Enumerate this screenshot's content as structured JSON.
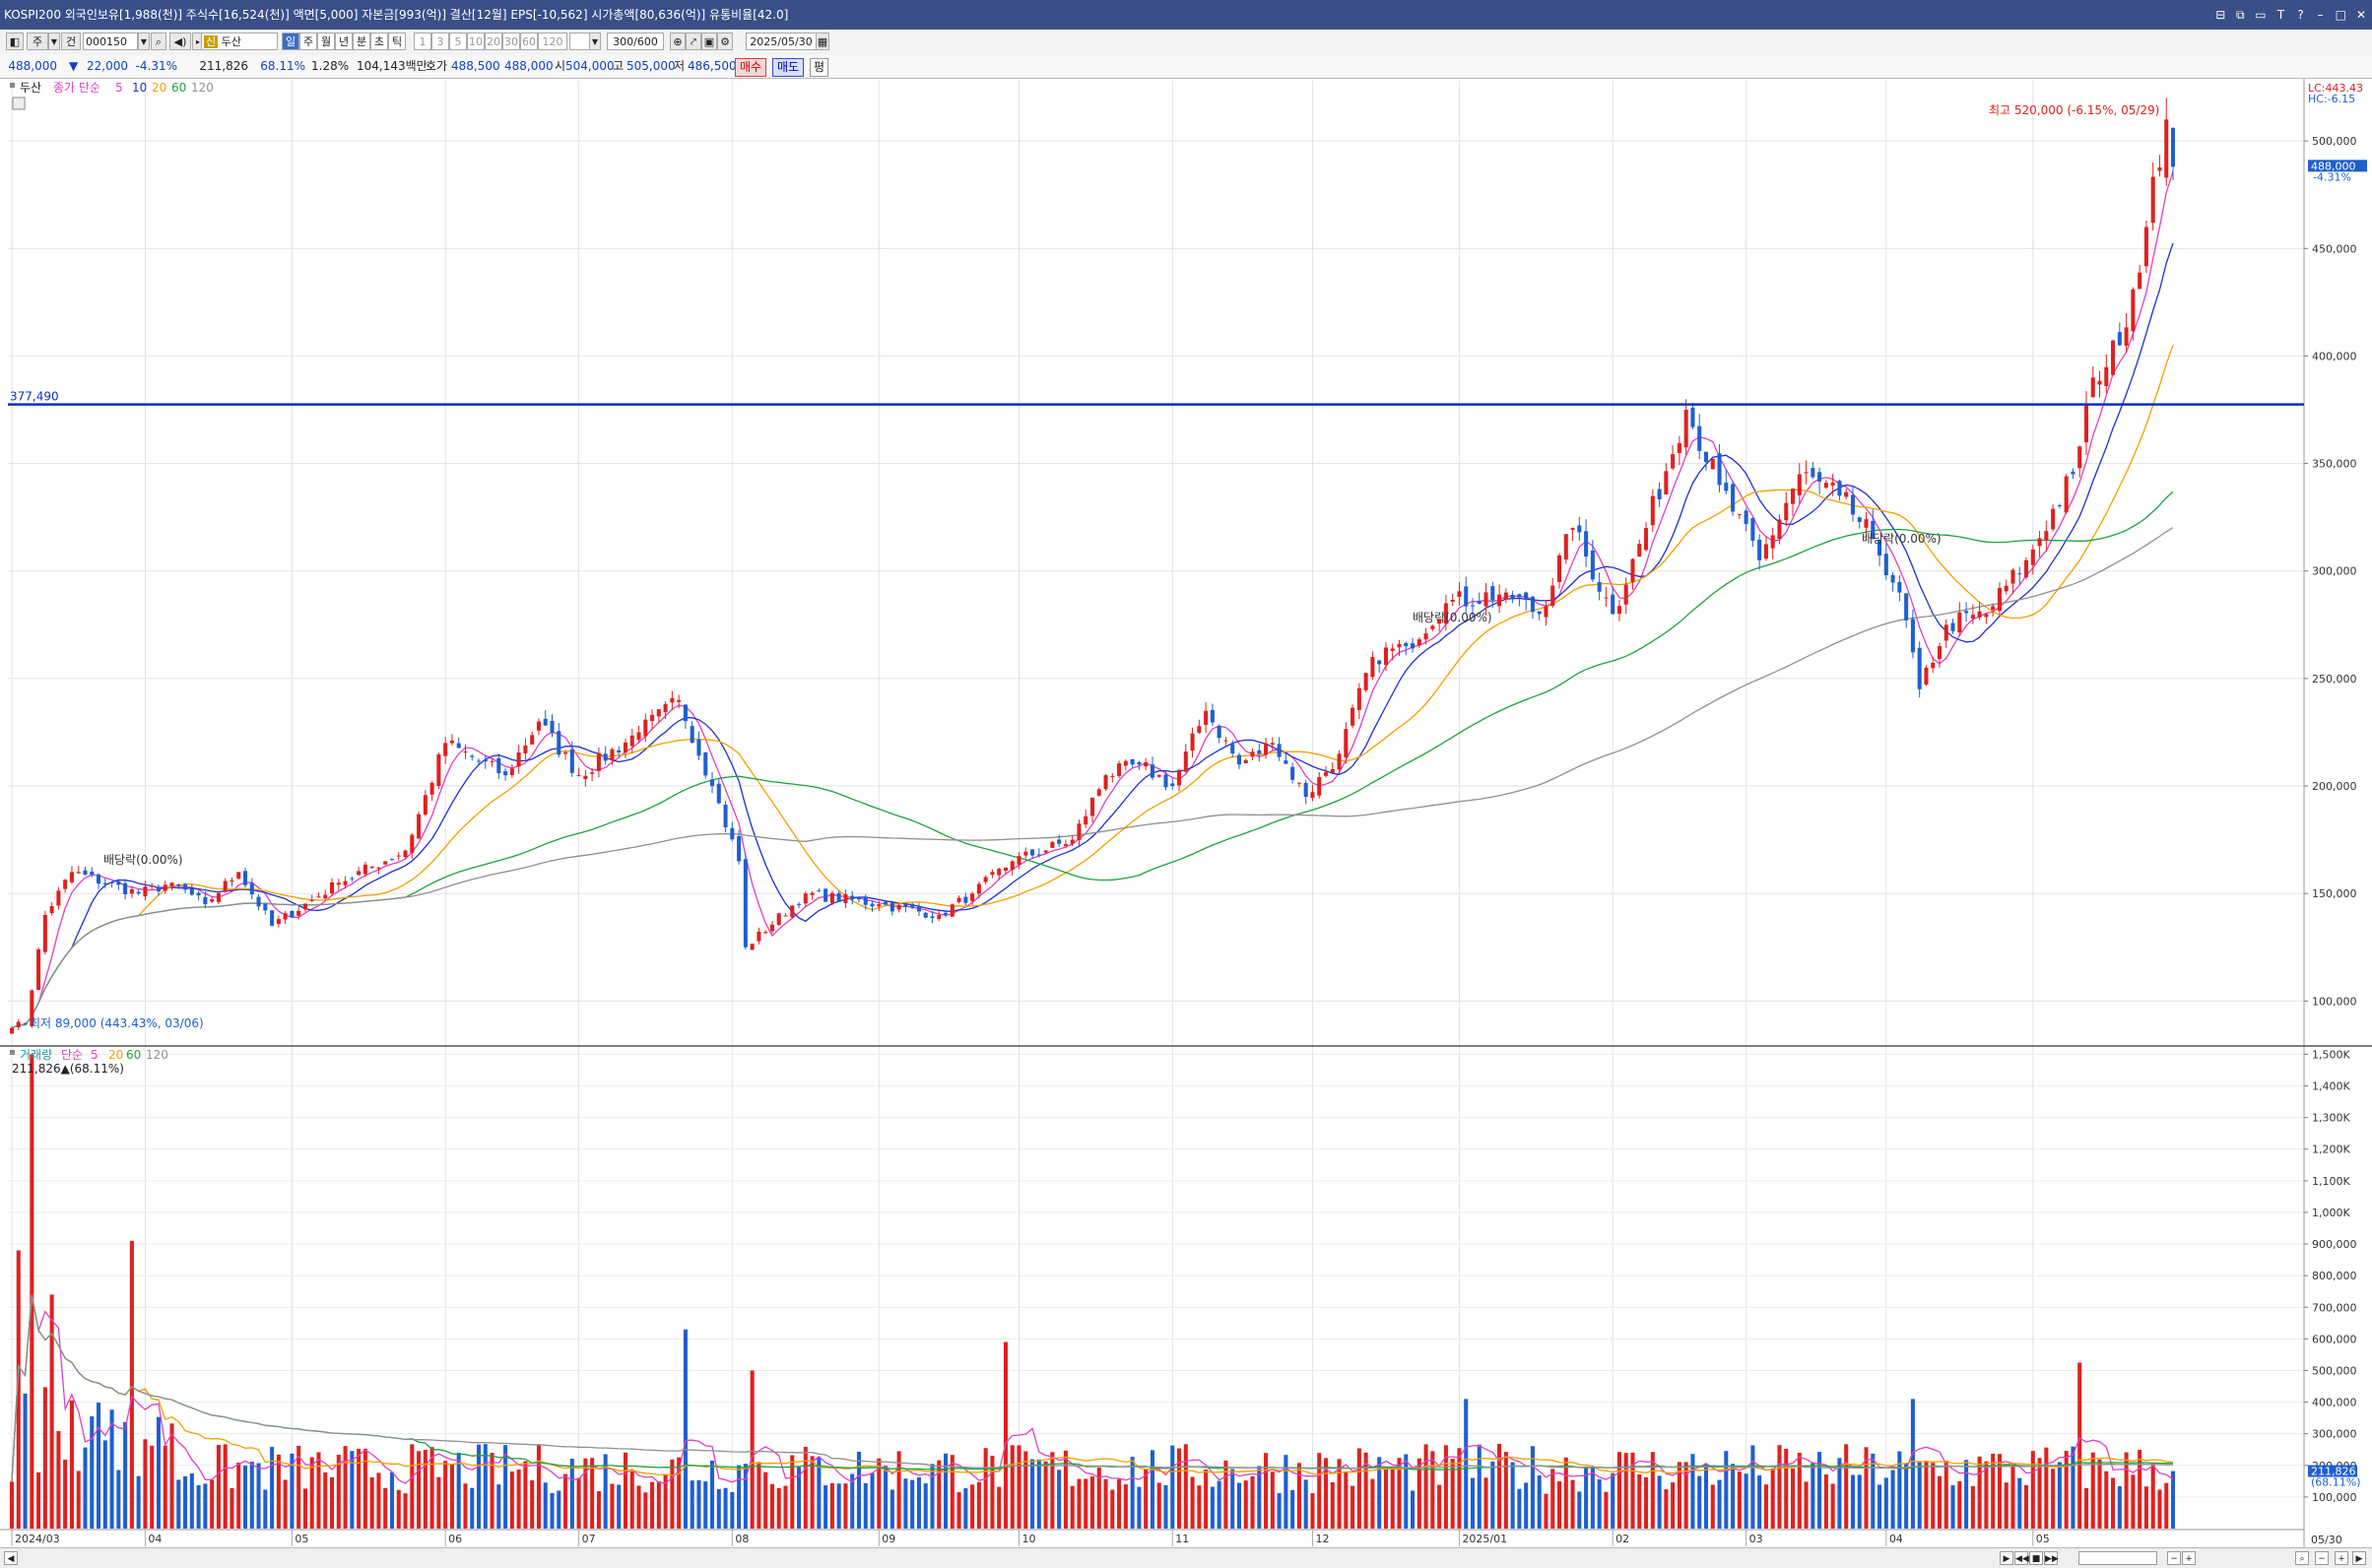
{
  "titlebar": {
    "text": "KOSPI200 외국인보유[1,988(천)] 주식수[16,524(천)] 액면[5,000] 자본금[993(억)] 결산[12월] EPS[-10,562] 시가총액[80,636(억)] 유통비율[42.0]",
    "buttons": [
      "⊟",
      "⧉",
      "▭",
      "T",
      "?",
      "–",
      "□",
      "✕"
    ]
  },
  "toolbar": {
    "period_buttons": [
      "주",
      "건"
    ],
    "stock_code": "000150",
    "stock_name_badge": "신",
    "stock_name": "두산",
    "timeframes": [
      "일",
      "주",
      "월",
      "년",
      "분",
      "초",
      "틱"
    ],
    "minute_options": [
      "1",
      "3",
      "5",
      "10",
      "20",
      "30",
      "60",
      "120"
    ],
    "count": "300/600",
    "date": "2025/05/30"
  },
  "quote": {
    "price": "488,000",
    "arrow": "▼",
    "change": "22,000",
    "change_pct": "-4.31%",
    "volume": "211,826",
    "volume_pct": "68.11%",
    "turnover": "1.28%",
    "amount": "104,143백만",
    "bid_label": "호가",
    "bid1": "488,500",
    "bid2": "488,000",
    "open_label": "시",
    "open": "504,000",
    "high_label": "고",
    "high": "505,000",
    "low_label": "저",
    "low": "486,500",
    "buy": "매수",
    "sell": "매도",
    "flat": "평"
  },
  "price_pane": {
    "stock_label": "두산",
    "ma_label": "종가 단순",
    "ma_periods": [
      "5",
      "10",
      "20",
      "60",
      "120"
    ],
    "lc": "LC:443.43",
    "hc": "HC:-6.15",
    "current_price": "488,000",
    "current_pct": "-4.31%",
    "hline_value": "377,490",
    "high_annotation": "최고 520,000 (-6.15%, 05/29)",
    "low_annotation": "최저 89,000 (443.43%, 03/06)",
    "dividend_label": "배당락(0.00%)",
    "y_ticks": [
      "500,000",
      "450,000",
      "400,000",
      "350,000",
      "300,000",
      "250,000",
      "200,000",
      "150,000",
      "100,000"
    ]
  },
  "volume_pane": {
    "label": "거래량",
    "ma_label": "단순",
    "ma_periods": [
      "5",
      "20",
      "60",
      "120"
    ],
    "current": "211,826",
    "current_pct": "(68.11%)",
    "current_display": "211,826▲(68.11%)",
    "y_ticks": [
      "1,500K",
      "1,400K",
      "1,300K",
      "1,200K",
      "1,100K",
      "1,000K",
      "900,000",
      "800,000",
      "700,000",
      "600,000",
      "500,000",
      "400,000",
      "300,000",
      "200,000",
      "100,000"
    ]
  },
  "x_labels": [
    "2024/03",
    "04",
    "05",
    "06",
    "07",
    "08",
    "09",
    "10",
    "11",
    "12",
    "2025/01",
    "02",
    "03",
    "04",
    "05"
  ],
  "last_date": "05/30",
  "colors": {
    "up": "#e02020",
    "down": "#1f5fd0",
    "ma5": "#e040c0",
    "ma10": "#2030d0",
    "ma20": "#f0a000",
    "ma60": "#20a040",
    "ma120": "#909090",
    "hline": "#1030c0"
  },
  "chart_data": {
    "type": "candlestick",
    "title": "두산",
    "x_range": [
      "2024/03/04",
      "2025/05/30"
    ],
    "ylim": [
      80000,
      528000
    ],
    "volume_ylim": [
      0,
      1520000
    ],
    "close_anchors": [
      {
        "x": "2024/03/06",
        "y": 89000
      },
      {
        "x": "2024/03/11",
        "y": 140000
      },
      {
        "x": "2024/03/15",
        "y": 160000
      },
      {
        "x": "2024/03/29",
        "y": 150000
      },
      {
        "x": "2024/04/05",
        "y": 155000
      },
      {
        "x": "2024/04/12",
        "y": 145000
      },
      {
        "x": "2024/04/19",
        "y": 160000
      },
      {
        "x": "2024/04/26",
        "y": 135000
      },
      {
        "x": "2024/05/10",
        "y": 155000
      },
      {
        "x": "2024/05/24",
        "y": 170000
      },
      {
        "x": "2024/06/03",
        "y": 220000
      },
      {
        "x": "2024/06/14",
        "y": 205000
      },
      {
        "x": "2024/06/21",
        "y": 230000
      },
      {
        "x": "2024/07/01",
        "y": 205000
      },
      {
        "x": "2024/07/12",
        "y": 225000
      },
      {
        "x": "2024/07/22",
        "y": 240000
      },
      {
        "x": "2024/07/29",
        "y": 200000
      },
      {
        "x": "2024/08/02",
        "y": 165000
      },
      {
        "x": "2024/08/05",
        "y": 125000
      },
      {
        "x": "2024/08/16",
        "y": 150000
      },
      {
        "x": "2024/09/02",
        "y": 145000
      },
      {
        "x": "2024/09/13",
        "y": 140000
      },
      {
        "x": "2024/09/20",
        "y": 150000
      },
      {
        "x": "2024/09/30",
        "y": 165000
      },
      {
        "x": "2024/10/11",
        "y": 175000
      },
      {
        "x": "2024/10/18",
        "y": 205000
      },
      {
        "x": "2024/10/25",
        "y": 210000
      },
      {
        "x": "2024/11/01",
        "y": 200000
      },
      {
        "x": "2024/11/08",
        "y": 235000
      },
      {
        "x": "2024/11/15",
        "y": 210000
      },
      {
        "x": "2024/11/22",
        "y": 220000
      },
      {
        "x": "2024/11/29",
        "y": 195000
      },
      {
        "x": "2024/12/06",
        "y": 215000
      },
      {
        "x": "2024/12/13",
        "y": 260000
      },
      {
        "x": "2024/12/20",
        "y": 265000
      },
      {
        "x": "2024/12/30",
        "y": 285000
      },
      {
        "x": "2025/01/10",
        "y": 290000
      },
      {
        "x": "2025/01/17",
        "y": 280000
      },
      {
        "x": "2025/01/24",
        "y": 320000
      },
      {
        "x": "2025/02/03",
        "y": 280000
      },
      {
        "x": "2025/02/10",
        "y": 320000
      },
      {
        "x": "2025/02/18",
        "y": 375000
      },
      {
        "x": "2025/02/25",
        "y": 340000
      },
      {
        "x": "2025/03/05",
        "y": 305000
      },
      {
        "x": "2025/03/13",
        "y": 345000
      },
      {
        "x": "2025/03/21",
        "y": 335000
      },
      {
        "x": "2025/03/28",
        "y": 315000
      },
      {
        "x": "2025/04/03",
        "y": 290000
      },
      {
        "x": "2025/04/08",
        "y": 245000
      },
      {
        "x": "2025/04/14",
        "y": 275000
      },
      {
        "x": "2025/04/22",
        "y": 280000
      },
      {
        "x": "2025/04/30",
        "y": 305000
      },
      {
        "x": "2025/05/09",
        "y": 345000
      },
      {
        "x": "2025/05/14",
        "y": 390000
      },
      {
        "x": "2025/05/20",
        "y": 405000
      },
      {
        "x": "2025/05/26",
        "y": 460000
      },
      {
        "x": "2025/05/29",
        "y": 510000
      },
      {
        "x": "2025/05/30",
        "y": 488000
      }
    ],
    "volume_spikes": [
      {
        "x": "2024/03/05",
        "y": 880000
      },
      {
        "x": "2024/03/07",
        "y": 1500000
      },
      {
        "x": "2024/03/12",
        "y": 740000
      },
      {
        "x": "2024/03/28",
        "y": 910000
      },
      {
        "x": "2024/07/23",
        "y": 630000
      },
      {
        "x": "2024/08/06",
        "y": 500000
      },
      {
        "x": "2024/09/27",
        "y": 590000
      },
      {
        "x": "2025/01/02",
        "y": 410000
      },
      {
        "x": "2025/04/07",
        "y": 410000
      },
      {
        "x": "2025/05/12",
        "y": 525000
      }
    ],
    "ma_periods": [
      5,
      10,
      20,
      60,
      120
    ],
    "hline": 377490,
    "high": {
      "date": "05/29",
      "value": 520000
    },
    "low": {
      "date": "03/06",
      "value": 89000
    }
  }
}
